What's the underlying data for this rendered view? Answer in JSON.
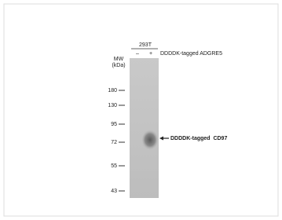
{
  "sample": "293T",
  "lanes": [
    "–",
    "+"
  ],
  "treatment": "DDDDK-tagged ADGRE5",
  "mw_label": [
    "MW",
    "(kDa)"
  ],
  "markers": [
    "180",
    "130",
    "95",
    "72",
    "55",
    "43"
  ],
  "band_label": "DDDDK-tagged  CD97"
}
